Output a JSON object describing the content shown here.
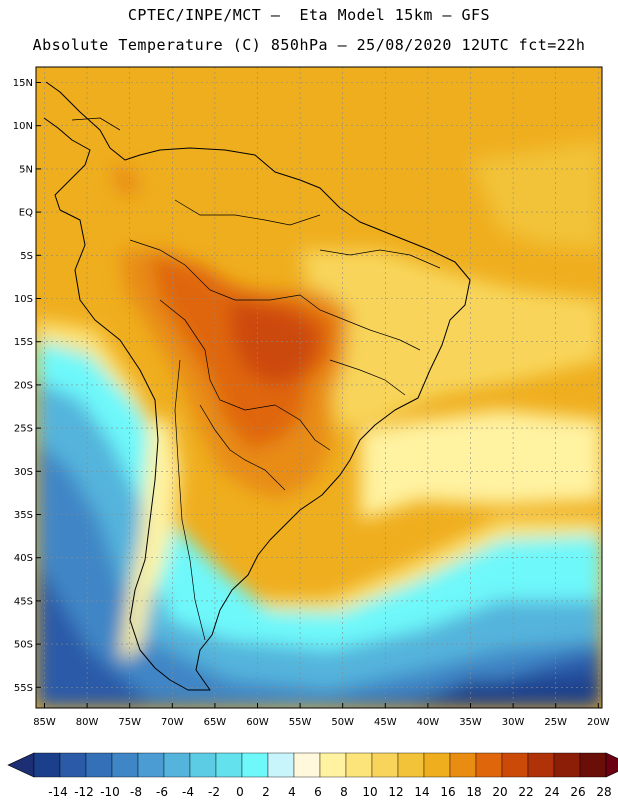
{
  "header": {
    "line1": "CPTEC/INPE/MCT –  Eta Model 15km – GFS",
    "line2": "Absolute Temperature (C) 850hPa – 25/08/2020 12UTC fct=22h"
  },
  "axes": {
    "lat_labels": [
      "15N",
      "10N",
      "5N",
      "EQ",
      "5S",
      "10S",
      "15S",
      "20S",
      "25S",
      "30S",
      "35S",
      "40S",
      "45S",
      "50S",
      "55S"
    ],
    "lon_labels": [
      "85W",
      "80W",
      "75W",
      "70W",
      "65W",
      "60W",
      "55W",
      "50W",
      "45W",
      "40W",
      "35W",
      "30W",
      "25W",
      "20W"
    ]
  },
  "colorbar": {
    "ticks": [
      "-14",
      "-12",
      "-10",
      "-8",
      "-6",
      "-4",
      "-2",
      "0",
      "2",
      "4",
      "6",
      "8",
      "10",
      "12",
      "14",
      "16",
      "18",
      "20",
      "22",
      "24",
      "26",
      "28"
    ],
    "colors": [
      "#1c3f8c",
      "#2a5aa8",
      "#3470b8",
      "#3f86c6",
      "#4a9cd2",
      "#55b4dc",
      "#5ccce4",
      "#63e2ee",
      "#6ef8fa",
      "#c8f4fc",
      "#fff8dc",
      "#fff2a0",
      "#fde47a",
      "#f8d55a",
      "#f2c239",
      "#efae1e",
      "#e88c12",
      "#e0660c",
      "#cc4a08",
      "#b03208",
      "#8c1e08",
      "#6a0e08"
    ],
    "under_color": "#1c2f74",
    "over_color": "#6a0012"
  }
}
